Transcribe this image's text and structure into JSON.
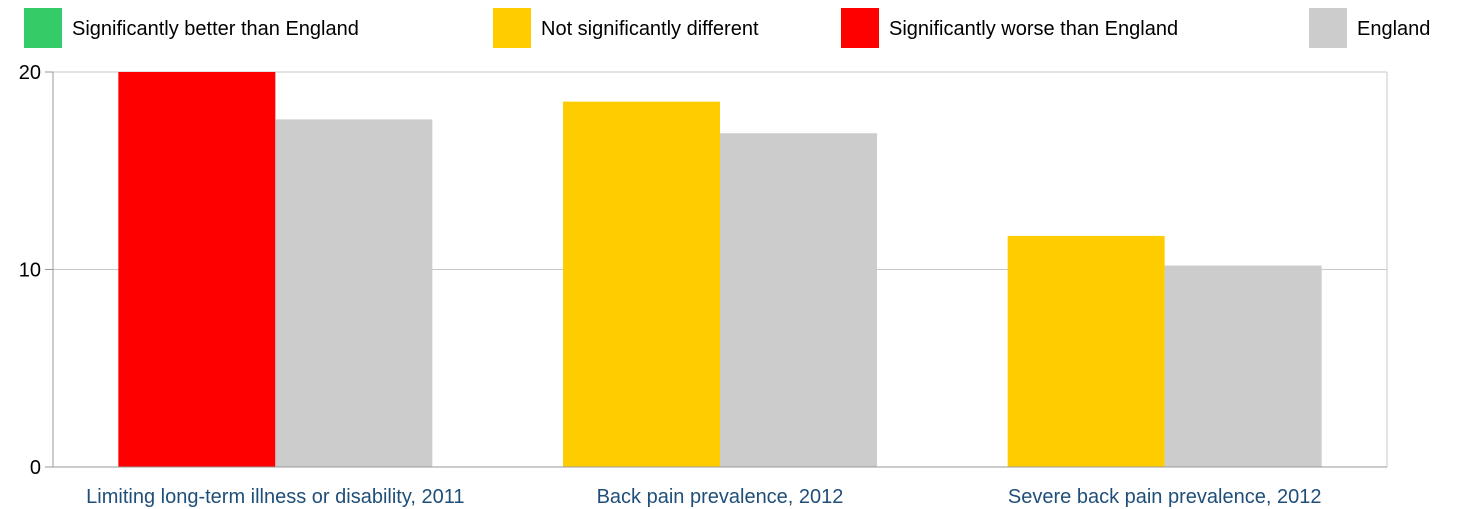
{
  "legend": [
    {
      "label": "Significantly better than England",
      "color": "#33cc66"
    },
    {
      "label": "Not significantly different",
      "color": "#ffcc00"
    },
    {
      "label": "Significantly worse than England",
      "color": "#ff0000"
    },
    {
      "label": "England",
      "color": "#cccccc"
    }
  ],
  "chart_data": {
    "type": "bar",
    "categories": [
      "Limiting long-term illness or disability, 2011",
      "Back pain prevalence, 2012",
      "Severe back pain prevalence, 2012"
    ],
    "series": [
      {
        "values": [
          20.0,
          18.5,
          11.7
        ],
        "colors": [
          "#ff0000",
          "#ffcc00",
          "#ffcc00"
        ]
      },
      {
        "name": "England",
        "values": [
          17.6,
          16.9,
          10.2
        ],
        "colors": [
          "#cccccc",
          "#cccccc",
          "#cccccc"
        ]
      }
    ],
    "ylim": [
      0,
      20
    ],
    "yticks": [
      0,
      10,
      20
    ],
    "grid": true,
    "legend_position": "top"
  }
}
